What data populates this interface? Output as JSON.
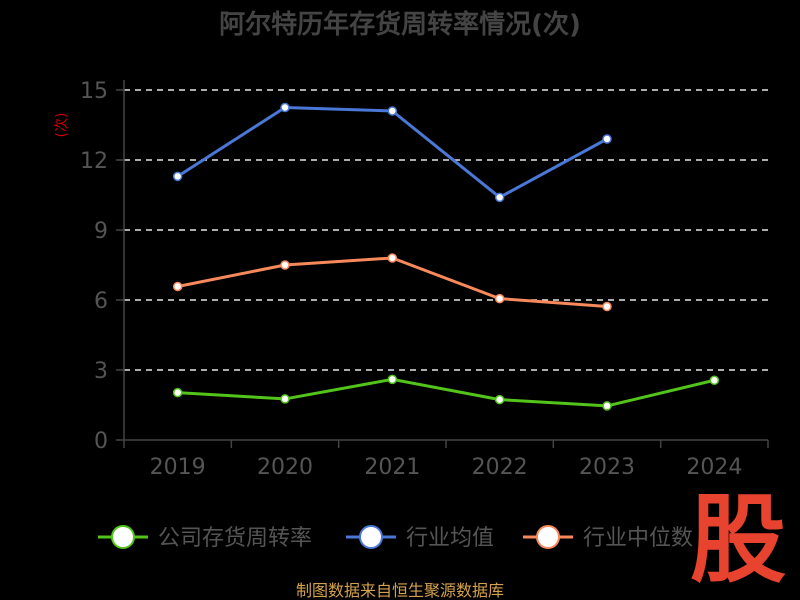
{
  "chart_data": {
    "type": "line",
    "title": "阿尔特历年存货周转率情况(次)",
    "ylabel": "(次)",
    "xlabel": "",
    "categories": [
      "2019",
      "2020",
      "2021",
      "2022",
      "2023",
      "2024"
    ],
    "ylim": [
      0,
      15
    ],
    "yticks": [
      0,
      3,
      6,
      9,
      12,
      15
    ],
    "grid": true,
    "legend_position": "bottom",
    "series": [
      {
        "name": "公司存货周转率",
        "color": "#52c41a",
        "values": [
          2.03,
          1.76,
          2.6,
          1.73,
          1.46,
          2.56
        ]
      },
      {
        "name": "行业均值",
        "color": "#4a78d6",
        "values": [
          11.3,
          14.25,
          14.1,
          10.4,
          12.9,
          null
        ]
      },
      {
        "name": "行业中位数",
        "color": "#f7895b",
        "values": [
          6.58,
          7.5,
          7.8,
          6.06,
          5.72,
          null
        ]
      }
    ]
  },
  "source": "制图数据来自恒生聚源数据库",
  "logo": "股"
}
